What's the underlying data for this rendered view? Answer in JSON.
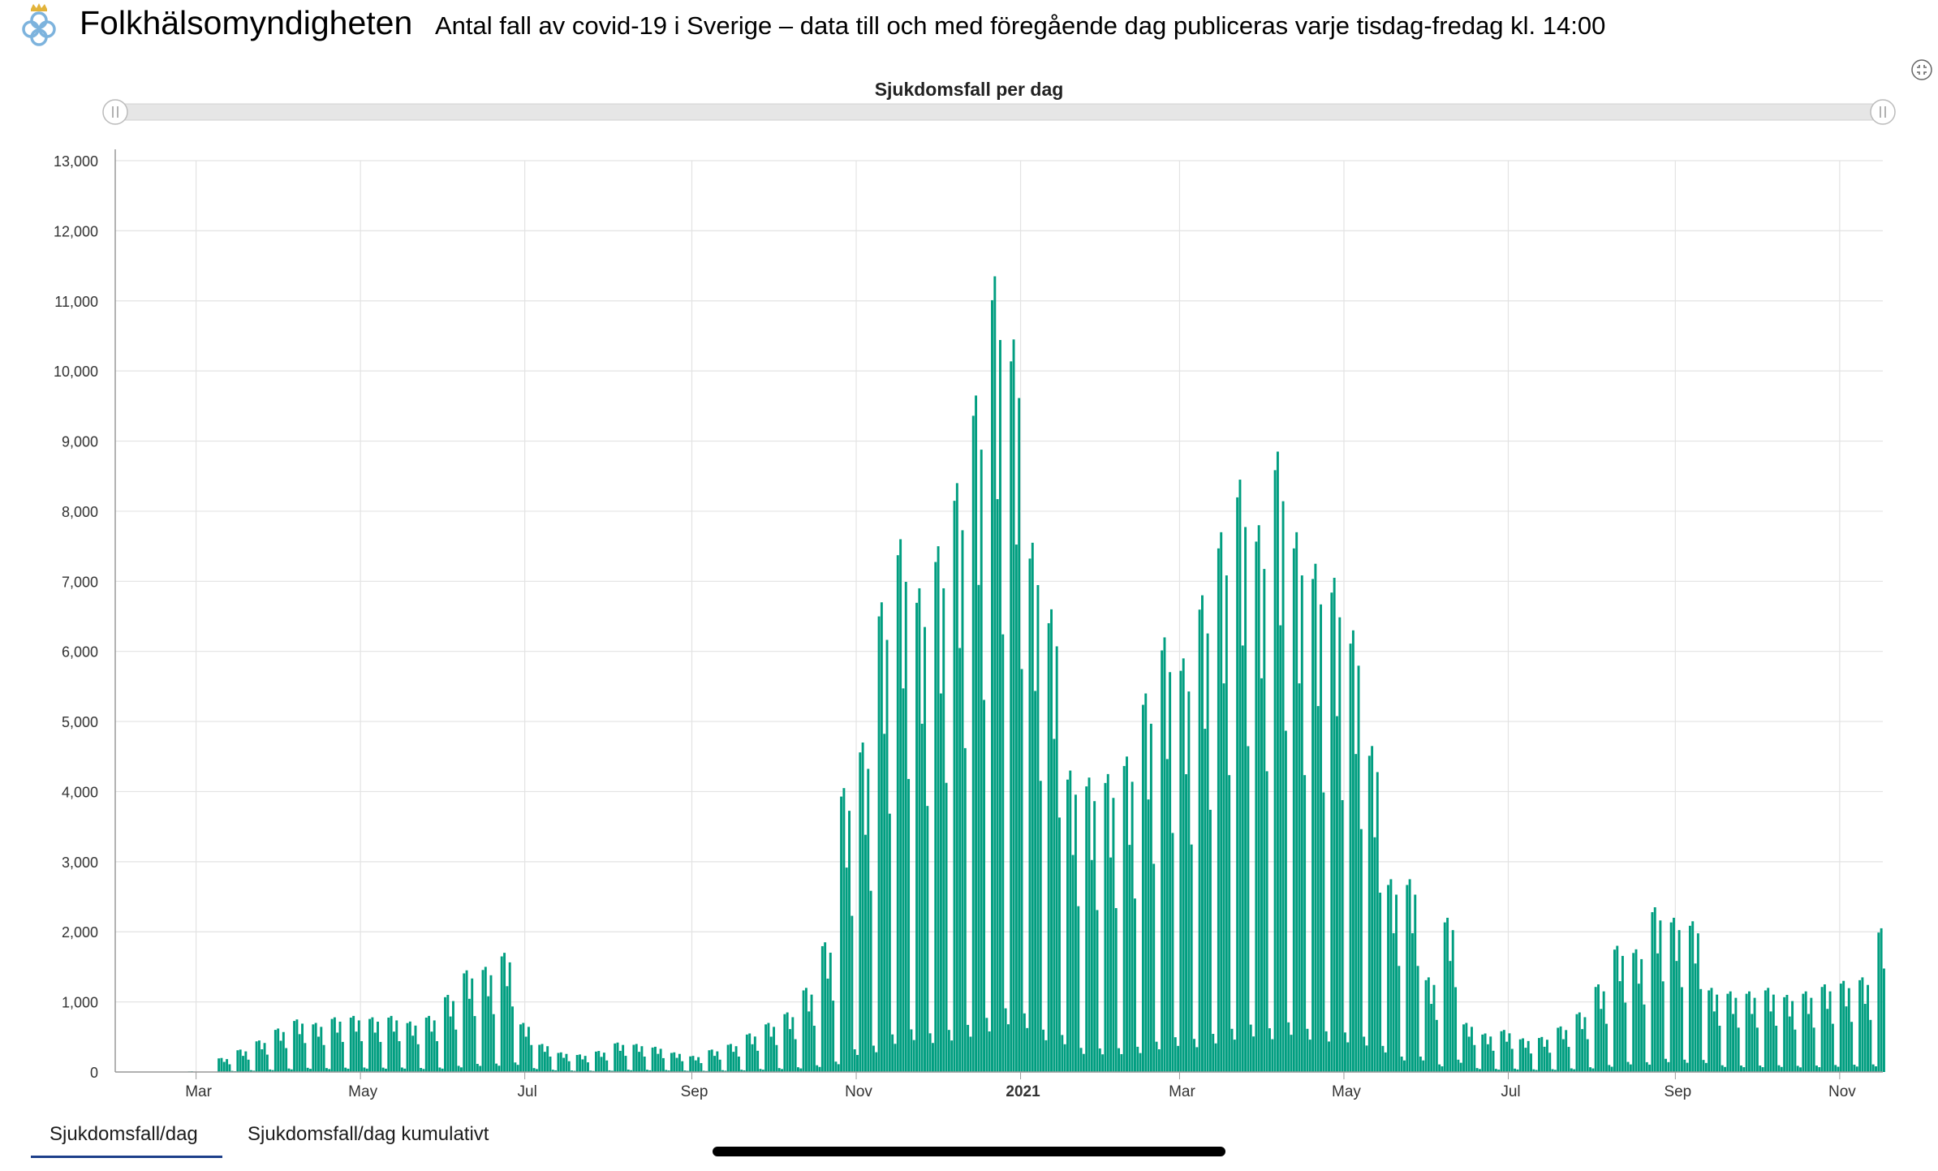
{
  "header": {
    "org_name": "Folkhälsomyndigheten",
    "subtitle": "Antal fall av covid-19 i Sverige – data till och med föregående dag publiceras varje tisdag-fredag kl. 14:00"
  },
  "tabs": [
    {
      "label": "Sjukdomsfall/dag",
      "active": true
    },
    {
      "label": "Sjukdomsfall/dag kumulativt",
      "active": false
    }
  ],
  "colors": {
    "bar": "#009e80",
    "grid": "#e3e3e3",
    "scrollbar": "#e6e6e6",
    "tab_underline": "#1d3f8a"
  },
  "icons": {
    "logo": "crown-cloverleaf-logo",
    "fullscreen": "fullscreen-exit-icon"
  },
  "chart_data": {
    "type": "bar",
    "title": "Sjukdomsfall per dag",
    "xlabel": "",
    "ylabel": "",
    "ylim": [
      0,
      13000
    ],
    "yticks": [
      0,
      1000,
      2000,
      3000,
      4000,
      5000,
      6000,
      7000,
      8000,
      9000,
      10000,
      11000,
      12000,
      13000
    ],
    "ytick_labels": [
      "0",
      "1,000",
      "2,000",
      "3,000",
      "4,000",
      "5,000",
      "6,000",
      "7,000",
      "8,000",
      "9,000",
      "10,000",
      "11,000",
      "12,000",
      "13,000"
    ],
    "x_range": [
      "2020-01-31",
      "2021-11-17"
    ],
    "x_ticks": [
      {
        "date": "2020-03-01",
        "label": "Mar"
      },
      {
        "date": "2020-05-01",
        "label": "May"
      },
      {
        "date": "2020-07-01",
        "label": "Jul"
      },
      {
        "date": "2020-09-01",
        "label": "Sep"
      },
      {
        "date": "2020-11-01",
        "label": "Nov"
      },
      {
        "date": "2021-01-01",
        "label": "2021",
        "bold": true
      },
      {
        "date": "2021-03-01",
        "label": "Mar"
      },
      {
        "date": "2021-05-01",
        "label": "May"
      },
      {
        "date": "2021-07-01",
        "label": "Jul"
      },
      {
        "date": "2021-09-01",
        "label": "Sep"
      },
      {
        "date": "2021-11-01",
        "label": "Nov"
      }
    ],
    "grid": true,
    "range_selector": true,
    "start_date": "2020-01-31",
    "series": [
      {
        "name": "Sjukdomsfall/dag",
        "weekly_peaks": [
          {
            "week_of": "2020-02-24",
            "values": [
              0,
              2,
              5,
              8,
              10,
              6,
              3
            ]
          },
          {
            "week_of": "2020-03-09",
            "peak": 200
          },
          {
            "week_of": "2020-03-16",
            "peak": 320
          },
          {
            "week_of": "2020-03-23",
            "peak": 450
          },
          {
            "week_of": "2020-03-30",
            "peak": 620
          },
          {
            "week_of": "2020-04-06",
            "peak": 750
          },
          {
            "week_of": "2020-04-13",
            "peak": 700
          },
          {
            "week_of": "2020-04-20",
            "peak": 780
          },
          {
            "week_of": "2020-04-27",
            "peak": 800
          },
          {
            "week_of": "2020-05-04",
            "peak": 780
          },
          {
            "week_of": "2020-05-11",
            "peak": 800
          },
          {
            "week_of": "2020-05-18",
            "peak": 720
          },
          {
            "week_of": "2020-05-25",
            "peak": 800
          },
          {
            "week_of": "2020-06-01",
            "peak": 1100
          },
          {
            "week_of": "2020-06-08",
            "peak": 1450
          },
          {
            "week_of": "2020-06-15",
            "peak": 1500
          },
          {
            "week_of": "2020-06-22",
            "peak": 1700
          },
          {
            "week_of": "2020-06-29",
            "peak": 700
          },
          {
            "week_of": "2020-07-06",
            "peak": 400
          },
          {
            "week_of": "2020-07-13",
            "peak": 280
          },
          {
            "week_of": "2020-07-20",
            "peak": 250
          },
          {
            "week_of": "2020-07-27",
            "peak": 300
          },
          {
            "week_of": "2020-08-03",
            "peak": 420
          },
          {
            "week_of": "2020-08-10",
            "peak": 400
          },
          {
            "week_of": "2020-08-17",
            "peak": 360
          },
          {
            "week_of": "2020-08-24",
            "peak": 280
          },
          {
            "week_of": "2020-08-31",
            "peak": 230
          },
          {
            "week_of": "2020-09-07",
            "peak": 320
          },
          {
            "week_of": "2020-09-14",
            "peak": 400
          },
          {
            "week_of": "2020-09-21",
            "peak": 550
          },
          {
            "week_of": "2020-09-28",
            "peak": 700
          },
          {
            "week_of": "2020-10-05",
            "peak": 850
          },
          {
            "week_of": "2020-10-12",
            "peak": 1200
          },
          {
            "week_of": "2020-10-19",
            "peak": 1850
          },
          {
            "week_of": "2020-10-26",
            "peak": 4050
          },
          {
            "week_of": "2020-11-02",
            "peak": 4700
          },
          {
            "week_of": "2020-11-09",
            "peak": 6700
          },
          {
            "week_of": "2020-11-16",
            "peak": 7600
          },
          {
            "week_of": "2020-11-23",
            "peak": 6900
          },
          {
            "week_of": "2020-11-30",
            "peak": 7500
          },
          {
            "week_of": "2020-12-07",
            "peak": 8400
          },
          {
            "week_of": "2020-12-14",
            "peak": 9650
          },
          {
            "week_of": "2020-12-21",
            "peak": 11350
          },
          {
            "week_of": "2020-12-28",
            "peak": 10450
          },
          {
            "week_of": "2021-01-04",
            "peak": 7550
          },
          {
            "week_of": "2021-01-11",
            "peak": 6600
          },
          {
            "week_of": "2021-01-18",
            "peak": 4300
          },
          {
            "week_of": "2021-01-25",
            "peak": 4200
          },
          {
            "week_of": "2021-02-01",
            "peak": 4250
          },
          {
            "week_of": "2021-02-08",
            "peak": 4500
          },
          {
            "week_of": "2021-02-15",
            "peak": 5400
          },
          {
            "week_of": "2021-02-22",
            "peak": 6200
          },
          {
            "week_of": "2021-03-01",
            "peak": 5900
          },
          {
            "week_of": "2021-03-08",
            "peak": 6800
          },
          {
            "week_of": "2021-03-15",
            "peak": 7700
          },
          {
            "week_of": "2021-03-22",
            "peak": 8450
          },
          {
            "week_of": "2021-03-29",
            "peak": 7800
          },
          {
            "week_of": "2021-04-05",
            "peak": 8850
          },
          {
            "week_of": "2021-04-12",
            "peak": 7700
          },
          {
            "week_of": "2021-04-19",
            "peak": 7250
          },
          {
            "week_of": "2021-04-26",
            "peak": 7050
          },
          {
            "week_of": "2021-05-03",
            "peak": 6300
          },
          {
            "week_of": "2021-05-10",
            "peak": 4650
          },
          {
            "week_of": "2021-05-17",
            "peak": 2750
          },
          {
            "week_of": "2021-05-24",
            "peak": 2750
          },
          {
            "week_of": "2021-05-31",
            "peak": 1350
          },
          {
            "week_of": "2021-06-07",
            "peak": 2200
          },
          {
            "week_of": "2021-06-14",
            "peak": 700
          },
          {
            "week_of": "2021-06-21",
            "peak": 550
          },
          {
            "week_of": "2021-06-28",
            "peak": 600
          },
          {
            "week_of": "2021-07-05",
            "peak": 480
          },
          {
            "week_of": "2021-07-12",
            "peak": 500
          },
          {
            "week_of": "2021-07-19",
            "peak": 650
          },
          {
            "week_of": "2021-07-26",
            "peak": 850
          },
          {
            "week_of": "2021-08-02",
            "peak": 1250
          },
          {
            "week_of": "2021-08-09",
            "peak": 1800
          },
          {
            "week_of": "2021-08-16",
            "peak": 1750
          },
          {
            "week_of": "2021-08-23",
            "peak": 2350
          },
          {
            "week_of": "2021-08-30",
            "peak": 2200
          },
          {
            "week_of": "2021-09-06",
            "peak": 2150
          },
          {
            "week_of": "2021-09-13",
            "peak": 1200
          },
          {
            "week_of": "2021-09-20",
            "peak": 1150
          },
          {
            "week_of": "2021-09-27",
            "peak": 1150
          },
          {
            "week_of": "2021-10-04",
            "peak": 1200
          },
          {
            "week_of": "2021-10-11",
            "peak": 1100
          },
          {
            "week_of": "2021-10-18",
            "peak": 1150
          },
          {
            "week_of": "2021-10-25",
            "peak": 1250
          },
          {
            "week_of": "2021-11-01",
            "peak": 1300
          },
          {
            "week_of": "2021-11-08",
            "peak": 1350
          },
          {
            "week_of": "2021-11-15",
            "peak": 2050
          }
        ]
      }
    ]
  }
}
